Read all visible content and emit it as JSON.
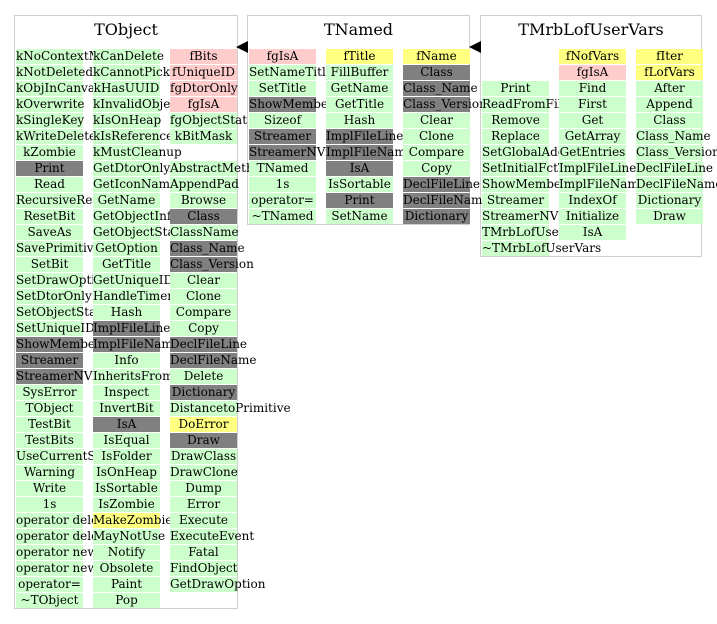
{
  "classes": [
    {
      "title": "TObject",
      "columns": [
        [
          {
            "t": "kNoContextMenu",
            "c": "g"
          },
          {
            "t": "kNotDeleted",
            "c": "g"
          },
          {
            "t": "kObjInCanvas",
            "c": "g"
          },
          {
            "t": "kOverwrite",
            "c": "g"
          },
          {
            "t": "kSingleKey",
            "c": "g"
          },
          {
            "t": "kWriteDelete",
            "c": "g"
          },
          {
            "t": "kZombie",
            "c": "g"
          },
          {
            "t": "Print",
            "c": "d"
          },
          {
            "t": "Read",
            "c": "g"
          },
          {
            "t": "RecursiveRemove",
            "c": "g"
          },
          {
            "t": "ResetBit",
            "c": "g"
          },
          {
            "t": "SaveAs",
            "c": "g"
          },
          {
            "t": "SavePrimitive",
            "c": "g"
          },
          {
            "t": "SetBit",
            "c": "g"
          },
          {
            "t": "SetDrawOption",
            "c": "g"
          },
          {
            "t": "SetDtorOnly",
            "c": "g"
          },
          {
            "t": "SetObjectStat",
            "c": "g"
          },
          {
            "t": "SetUniqueID",
            "c": "g"
          },
          {
            "t": "ShowMembers",
            "c": "d"
          },
          {
            "t": "Streamer",
            "c": "d"
          },
          {
            "t": "StreamerNVirtual",
            "c": "d"
          },
          {
            "t": "SysError",
            "c": "g"
          },
          {
            "t": "TObject",
            "c": "g"
          },
          {
            "t": "TestBit",
            "c": "g"
          },
          {
            "t": "TestBits",
            "c": "g"
          },
          {
            "t": "UseCurrentStyle",
            "c": "g"
          },
          {
            "t": "Warning",
            "c": "g"
          },
          {
            "t": "Write",
            "c": "g"
          },
          {
            "t": "1s",
            "c": "g"
          },
          {
            "t": "operator delete",
            "c": "g"
          },
          {
            "t": "operator delete[]",
            "c": "g"
          },
          {
            "t": "operator new",
            "c": "g"
          },
          {
            "t": "operator new[]",
            "c": "g"
          },
          {
            "t": "operator=",
            "c": "g"
          },
          {
            "t": "~TObject",
            "c": "g"
          }
        ],
        [
          {
            "t": "kCanDelete",
            "c": "g"
          },
          {
            "t": "kCannotPick",
            "c": "g"
          },
          {
            "t": "kHasUUID",
            "c": "g"
          },
          {
            "t": "kInvalidObject",
            "c": "g"
          },
          {
            "t": "kIsOnHeap",
            "c": "g"
          },
          {
            "t": "kIsReferenced",
            "c": "g"
          },
          {
            "t": "kMustCleanup",
            "c": "g"
          },
          {
            "t": "GetDtorOnly",
            "c": "g"
          },
          {
            "t": "GetIconName",
            "c": "g"
          },
          {
            "t": "GetName",
            "c": "g"
          },
          {
            "t": "GetObjectInfo",
            "c": "g"
          },
          {
            "t": "GetObjectStat",
            "c": "g"
          },
          {
            "t": "GetOption",
            "c": "g"
          },
          {
            "t": "GetTitle",
            "c": "g"
          },
          {
            "t": "GetUniqueID",
            "c": "g"
          },
          {
            "t": "HandleTimer",
            "c": "g"
          },
          {
            "t": "Hash",
            "c": "g"
          },
          {
            "t": "ImplFileLine",
            "c": "d"
          },
          {
            "t": "ImplFileName",
            "c": "d"
          },
          {
            "t": "Info",
            "c": "g"
          },
          {
            "t": "InheritsFrom",
            "c": "g"
          },
          {
            "t": "Inspect",
            "c": "g"
          },
          {
            "t": "InvertBit",
            "c": "g"
          },
          {
            "t": "IsA",
            "c": "d"
          },
          {
            "t": "IsEqual",
            "c": "g"
          },
          {
            "t": "IsFolder",
            "c": "g"
          },
          {
            "t": "IsOnHeap",
            "c": "g"
          },
          {
            "t": "IsSortable",
            "c": "g"
          },
          {
            "t": "IsZombie",
            "c": "g"
          },
          {
            "t": "MakeZombie",
            "c": "y"
          },
          {
            "t": "MayNotUse",
            "c": "g"
          },
          {
            "t": "Notify",
            "c": "g"
          },
          {
            "t": "Obsolete",
            "c": "g"
          },
          {
            "t": "Paint",
            "c": "g"
          },
          {
            "t": "Pop",
            "c": "g"
          }
        ],
        [
          {
            "t": "fBits",
            "c": "p"
          },
          {
            "t": "fUniqueID",
            "c": "p"
          },
          {
            "t": "fgDtorOnly",
            "c": "p"
          },
          {
            "t": "fgIsA",
            "c": "p"
          },
          {
            "t": "fgObjectStat",
            "c": "g"
          },
          {
            "t": "kBitMask",
            "c": "g"
          },
          {
            "t": "",
            "c": "n"
          },
          {
            "t": "AbstractMethod",
            "c": "g"
          },
          {
            "t": "AppendPad",
            "c": "g"
          },
          {
            "t": "Browse",
            "c": "g"
          },
          {
            "t": "Class",
            "c": "d"
          },
          {
            "t": "ClassName",
            "c": "g"
          },
          {
            "t": "Class_Name",
            "c": "d"
          },
          {
            "t": "Class_Version",
            "c": "d"
          },
          {
            "t": "Clear",
            "c": "g"
          },
          {
            "t": "Clone",
            "c": "g"
          },
          {
            "t": "Compare",
            "c": "g"
          },
          {
            "t": "Copy",
            "c": "g"
          },
          {
            "t": "DeclFileLine",
            "c": "d"
          },
          {
            "t": "DeclFileName",
            "c": "d"
          },
          {
            "t": "Delete",
            "c": "g"
          },
          {
            "t": "Dictionary",
            "c": "d"
          },
          {
            "t": "DistancetoPrimitive",
            "c": "g"
          },
          {
            "t": "DoError",
            "c": "y"
          },
          {
            "t": "Draw",
            "c": "d"
          },
          {
            "t": "DrawClass",
            "c": "g"
          },
          {
            "t": "DrawClone",
            "c": "g"
          },
          {
            "t": "Dump",
            "c": "g"
          },
          {
            "t": "Error",
            "c": "g"
          },
          {
            "t": "Execute",
            "c": "g"
          },
          {
            "t": "ExecuteEvent",
            "c": "g"
          },
          {
            "t": "Fatal",
            "c": "g"
          },
          {
            "t": "FindObject",
            "c": "g"
          },
          {
            "t": "GetDrawOption",
            "c": "g"
          }
        ]
      ]
    },
    {
      "title": "TNamed",
      "columns": [
        [
          {
            "t": "fgIsA",
            "c": "p"
          },
          {
            "t": "SetNameTitle",
            "c": "g"
          },
          {
            "t": "SetTitle",
            "c": "g"
          },
          {
            "t": "ShowMembers",
            "c": "d"
          },
          {
            "t": "Sizeof",
            "c": "g"
          },
          {
            "t": "Streamer",
            "c": "d"
          },
          {
            "t": "StreamerNVirtual",
            "c": "d"
          },
          {
            "t": "TNamed",
            "c": "g"
          },
          {
            "t": "1s",
            "c": "g"
          },
          {
            "t": "operator=",
            "c": "g"
          },
          {
            "t": "~TNamed",
            "c": "g"
          }
        ],
        [
          {
            "t": "fTitle",
            "c": "y"
          },
          {
            "t": "FillBuffer",
            "c": "g"
          },
          {
            "t": "GetName",
            "c": "g"
          },
          {
            "t": "GetTitle",
            "c": "g"
          },
          {
            "t": "Hash",
            "c": "g"
          },
          {
            "t": "ImplFileLine",
            "c": "d"
          },
          {
            "t": "ImplFileName",
            "c": "d"
          },
          {
            "t": "IsA",
            "c": "d"
          },
          {
            "t": "IsSortable",
            "c": "g"
          },
          {
            "t": "Print",
            "c": "d"
          },
          {
            "t": "SetName",
            "c": "g"
          }
        ],
        [
          {
            "t": "fName",
            "c": "y"
          },
          {
            "t": "Class",
            "c": "d"
          },
          {
            "t": "Class_Name",
            "c": "d"
          },
          {
            "t": "Class_Version",
            "c": "d"
          },
          {
            "t": "Clear",
            "c": "g"
          },
          {
            "t": "Clone",
            "c": "g"
          },
          {
            "t": "Compare",
            "c": "g"
          },
          {
            "t": "Copy",
            "c": "g"
          },
          {
            "t": "DeclFileLine",
            "c": "d"
          },
          {
            "t": "DeclFileName",
            "c": "d"
          },
          {
            "t": "Dictionary",
            "c": "d"
          }
        ]
      ]
    },
    {
      "title": "TMrbLofUserVars",
      "columns": [
        [
          {
            "t": "",
            "c": "n"
          },
          {
            "t": "",
            "c": "n"
          },
          {
            "t": "Print",
            "c": "g"
          },
          {
            "t": "ReadFromFile",
            "c": "g"
          },
          {
            "t": "Remove",
            "c": "g"
          },
          {
            "t": "Replace",
            "c": "g"
          },
          {
            "t": "SetGlobalAddress",
            "c": "g"
          },
          {
            "t": "SetInitialFctType",
            "c": "g"
          },
          {
            "t": "ShowMembers",
            "c": "g"
          },
          {
            "t": "Streamer",
            "c": "g"
          },
          {
            "t": "StreamerNVirtual",
            "c": "g"
          },
          {
            "t": "TMrbLofUserVars",
            "c": "g"
          },
          {
            "t": "~TMrbLofUserVars",
            "c": "g"
          }
        ],
        [
          {
            "t": "fNofVars",
            "c": "y"
          },
          {
            "t": "fgIsA",
            "c": "p"
          },
          {
            "t": "Find",
            "c": "g"
          },
          {
            "t": "First",
            "c": "g"
          },
          {
            "t": "Get",
            "c": "g"
          },
          {
            "t": "GetArray",
            "c": "g"
          },
          {
            "t": "GetEntries",
            "c": "g"
          },
          {
            "t": "ImplFileLine",
            "c": "g"
          },
          {
            "t": "ImplFileName",
            "c": "g"
          },
          {
            "t": "IndexOf",
            "c": "g"
          },
          {
            "t": "Initialize",
            "c": "g"
          },
          {
            "t": "IsA",
            "c": "g"
          }
        ],
        [
          {
            "t": "fIter",
            "c": "y"
          },
          {
            "t": "fLofVars",
            "c": "y"
          },
          {
            "t": "After",
            "c": "g"
          },
          {
            "t": "Append",
            "c": "g"
          },
          {
            "t": "Class",
            "c": "g"
          },
          {
            "t": "Class_Name",
            "c": "g"
          },
          {
            "t": "Class_Version",
            "c": "g"
          },
          {
            "t": "DeclFileLine",
            "c": "g"
          },
          {
            "t": "DeclFileName",
            "c": "g"
          },
          {
            "t": "Dictionary",
            "c": "g"
          },
          {
            "t": "Draw",
            "c": "g"
          }
        ]
      ]
    }
  ]
}
